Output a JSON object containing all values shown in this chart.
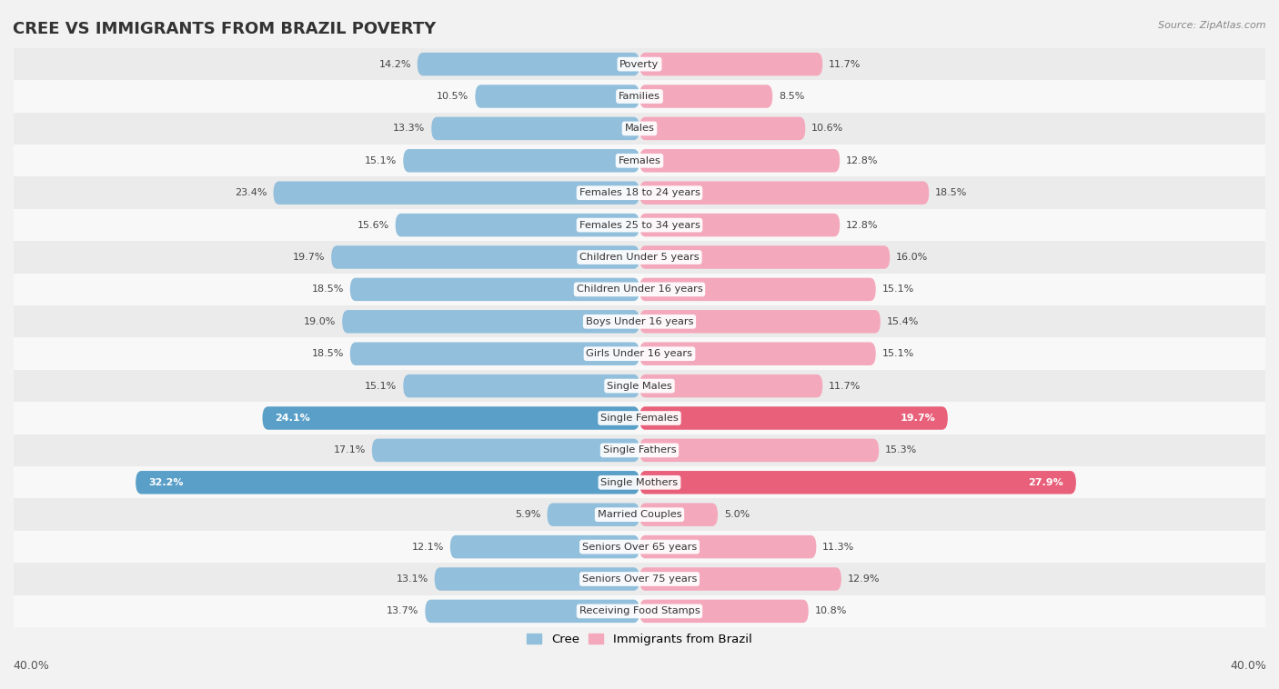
{
  "title": "CREE VS IMMIGRANTS FROM BRAZIL POVERTY",
  "source": "Source: ZipAtlas.com",
  "categories": [
    "Poverty",
    "Families",
    "Males",
    "Females",
    "Females 18 to 24 years",
    "Females 25 to 34 years",
    "Children Under 5 years",
    "Children Under 16 years",
    "Boys Under 16 years",
    "Girls Under 16 years",
    "Single Males",
    "Single Females",
    "Single Fathers",
    "Single Mothers",
    "Married Couples",
    "Seniors Over 65 years",
    "Seniors Over 75 years",
    "Receiving Food Stamps"
  ],
  "cree_values": [
    14.2,
    10.5,
    13.3,
    15.1,
    23.4,
    15.6,
    19.7,
    18.5,
    19.0,
    18.5,
    15.1,
    24.1,
    17.1,
    32.2,
    5.9,
    12.1,
    13.1,
    13.7
  ],
  "brazil_values": [
    11.7,
    8.5,
    10.6,
    12.8,
    18.5,
    12.8,
    16.0,
    15.1,
    15.4,
    15.1,
    11.7,
    19.7,
    15.3,
    27.9,
    5.0,
    11.3,
    12.9,
    10.8
  ],
  "cree_color": "#92bfdc",
  "brazil_color": "#f4a8bc",
  "cree_highlight_color": "#5a9fc8",
  "brazil_highlight_color": "#e8607a",
  "highlight_rows": [
    11,
    13
  ],
  "axis_limit": 40.0,
  "bar_height": 0.72,
  "bg_color": "#f2f2f2",
  "row_color_even": "#ebebeb",
  "row_color_odd": "#f8f8f8",
  "legend_cree": "Cree",
  "legend_brazil": "Immigrants from Brazil"
}
